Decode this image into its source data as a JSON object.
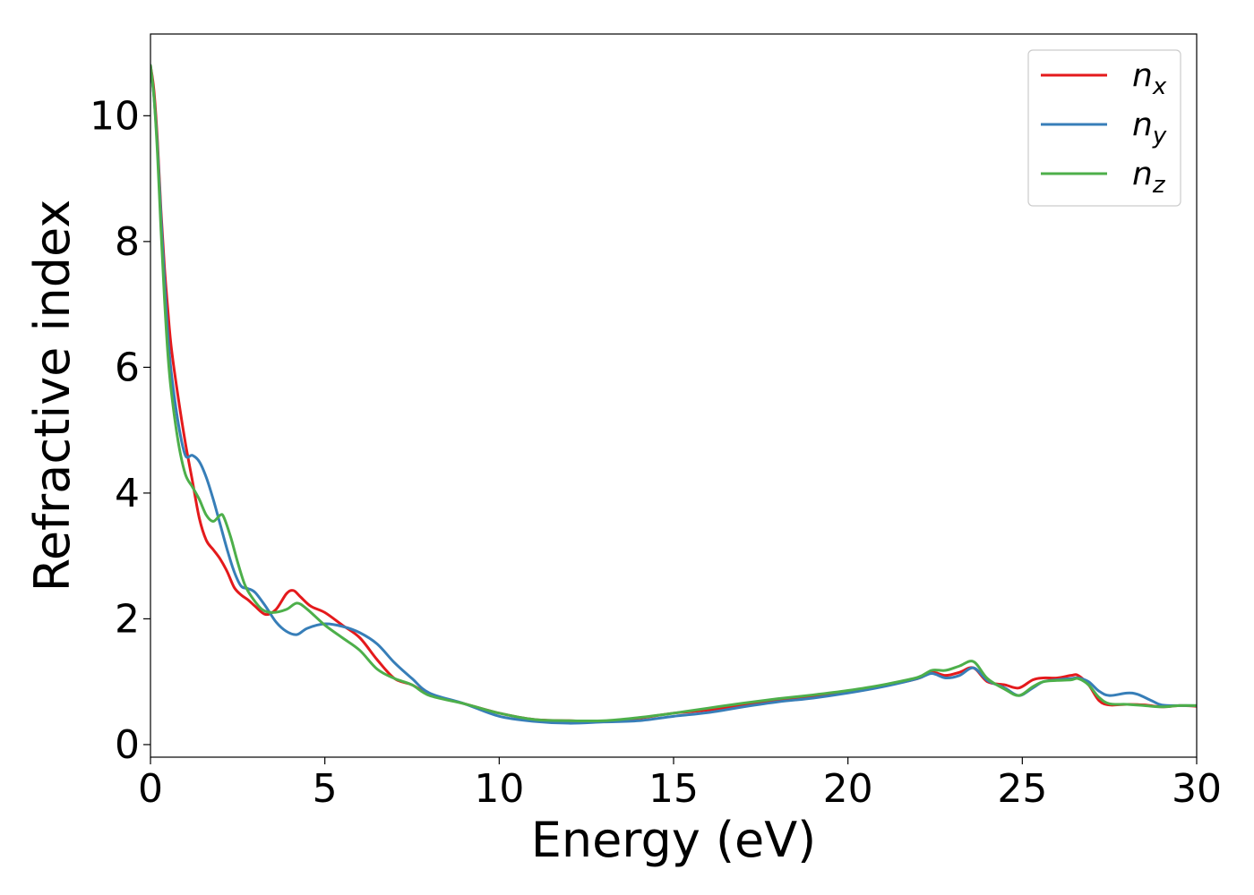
{
  "chart_data": {
    "type": "line",
    "title": "",
    "xlabel": "Energy (eV)",
    "ylabel": "Refractive index",
    "xlim": [
      0,
      30
    ],
    "ylim": [
      -0.2,
      11.3
    ],
    "xticks": [
      0,
      5,
      10,
      15,
      20,
      25,
      30
    ],
    "yticks": [
      0,
      2,
      4,
      6,
      8,
      10
    ],
    "grid": false,
    "legend_position": "top-right",
    "series": [
      {
        "name": "n",
        "subscript": "x",
        "color": "#e41a1c",
        "x": [
          0,
          0.1,
          0.2,
          0.3,
          0.4,
          0.5,
          0.6,
          0.8,
          1.0,
          1.2,
          1.4,
          1.6,
          1.8,
          2.0,
          2.2,
          2.4,
          2.6,
          2.8,
          3.0,
          3.3,
          3.6,
          3.9,
          4.1,
          4.3,
          4.6,
          5.0,
          5.5,
          6.0,
          6.5,
          7.0,
          7.5,
          8.0,
          9.0,
          10.0,
          11.0,
          12.0,
          13.0,
          14.0,
          15.0,
          16.0,
          17.0,
          18.0,
          19.0,
          20.0,
          21.0,
          22.0,
          22.4,
          22.8,
          23.2,
          23.6,
          24.0,
          24.5,
          24.9,
          25.3,
          25.6,
          26.0,
          26.4,
          26.6,
          26.9,
          27.2,
          27.5,
          28.0,
          28.5,
          29.0,
          29.5,
          30.0
        ],
        "y": [
          10.8,
          10.4,
          9.6,
          8.5,
          7.6,
          6.9,
          6.3,
          5.5,
          4.8,
          4.2,
          3.6,
          3.25,
          3.1,
          2.95,
          2.75,
          2.5,
          2.38,
          2.3,
          2.2,
          2.07,
          2.15,
          2.4,
          2.45,
          2.35,
          2.2,
          2.1,
          1.9,
          1.7,
          1.35,
          1.05,
          0.95,
          0.8,
          0.65,
          0.5,
          0.4,
          0.38,
          0.37,
          0.42,
          0.5,
          0.55,
          0.63,
          0.7,
          0.77,
          0.84,
          0.93,
          1.05,
          1.15,
          1.1,
          1.15,
          1.22,
          1.0,
          0.95,
          0.9,
          1.03,
          1.06,
          1.06,
          1.1,
          1.1,
          0.95,
          0.7,
          0.63,
          0.64,
          0.63,
          0.6,
          0.62,
          0.61
        ]
      },
      {
        "name": "n",
        "subscript": "y",
        "color": "#377eb8",
        "x": [
          0,
          0.1,
          0.2,
          0.3,
          0.4,
          0.5,
          0.6,
          0.8,
          1.0,
          1.2,
          1.4,
          1.6,
          1.8,
          2.0,
          2.2,
          2.4,
          2.6,
          2.8,
          3.0,
          3.3,
          3.6,
          3.9,
          4.2,
          4.5,
          5.0,
          5.5,
          6.0,
          6.5,
          7.0,
          7.5,
          8.0,
          9.0,
          10.0,
          11.0,
          12.0,
          13.0,
          14.0,
          15.0,
          16.0,
          17.0,
          18.0,
          19.0,
          20.0,
          21.0,
          22.0,
          22.4,
          22.8,
          23.2,
          23.6,
          24.0,
          24.5,
          24.9,
          25.3,
          25.6,
          26.0,
          26.4,
          26.6,
          26.9,
          27.2,
          27.5,
          28.0,
          28.3,
          28.7,
          29.0,
          29.5,
          30.0
        ],
        "y": [
          10.8,
          10.3,
          9.5,
          8.4,
          7.4,
          6.5,
          5.9,
          5.1,
          4.6,
          4.6,
          4.5,
          4.25,
          3.9,
          3.5,
          3.1,
          2.75,
          2.52,
          2.48,
          2.42,
          2.2,
          1.95,
          1.8,
          1.75,
          1.85,
          1.92,
          1.88,
          1.78,
          1.6,
          1.3,
          1.05,
          0.82,
          0.65,
          0.45,
          0.37,
          0.34,
          0.36,
          0.38,
          0.45,
          0.51,
          0.6,
          0.68,
          0.74,
          0.82,
          0.92,
          1.05,
          1.13,
          1.06,
          1.1,
          1.22,
          1.02,
          0.9,
          0.78,
          0.9,
          1.0,
          1.03,
          1.05,
          1.06,
          1.0,
          0.85,
          0.78,
          0.82,
          0.8,
          0.7,
          0.63,
          0.62,
          0.62
        ]
      },
      {
        "name": "n",
        "subscript": "z",
        "color": "#4daf4a",
        "x": [
          0,
          0.1,
          0.2,
          0.3,
          0.4,
          0.5,
          0.6,
          0.8,
          1.0,
          1.2,
          1.4,
          1.6,
          1.8,
          2.0,
          2.1,
          2.3,
          2.5,
          2.7,
          2.9,
          3.2,
          3.5,
          3.9,
          4.2,
          4.5,
          5.0,
          5.5,
          6.0,
          6.5,
          7.0,
          7.5,
          8.0,
          9.0,
          10.0,
          11.0,
          12.0,
          13.0,
          14.0,
          15.0,
          16.0,
          17.0,
          18.0,
          19.0,
          20.0,
          21.0,
          22.0,
          22.4,
          22.8,
          23.2,
          23.6,
          24.0,
          24.5,
          24.9,
          25.3,
          25.6,
          26.0,
          26.4,
          26.6,
          26.9,
          27.2,
          27.5,
          28.0,
          28.5,
          29.0,
          29.5,
          30.0
        ],
        "y": [
          10.8,
          10.3,
          9.4,
          8.2,
          7.1,
          6.2,
          5.6,
          4.8,
          4.3,
          4.1,
          3.9,
          3.65,
          3.55,
          3.65,
          3.62,
          3.3,
          2.9,
          2.55,
          2.35,
          2.15,
          2.1,
          2.15,
          2.25,
          2.15,
          1.9,
          1.7,
          1.5,
          1.2,
          1.05,
          0.95,
          0.78,
          0.65,
          0.5,
          0.4,
          0.38,
          0.38,
          0.43,
          0.5,
          0.58,
          0.66,
          0.73,
          0.79,
          0.86,
          0.95,
          1.07,
          1.18,
          1.18,
          1.25,
          1.32,
          1.05,
          0.88,
          0.78,
          0.92,
          1.0,
          1.02,
          1.03,
          1.05,
          0.95,
          0.75,
          0.65,
          0.64,
          0.62,
          0.6,
          0.62,
          0.62
        ]
      }
    ]
  }
}
